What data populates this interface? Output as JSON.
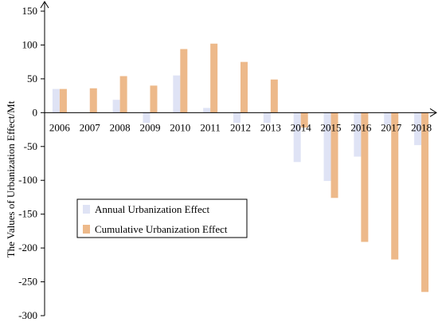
{
  "chart_data": {
    "type": "bar",
    "title": "",
    "xlabel": "",
    "ylabel": "The Values of  Urbanization Effect/Mt",
    "ylim": [
      -300,
      150
    ],
    "yticks": [
      150,
      100,
      50,
      0,
      -50,
      -100,
      -150,
      -200,
      -250,
      -300
    ],
    "grid": false,
    "legend_position": "lower-left",
    "categories": [
      "2006",
      "2007",
      "2008",
      "2009",
      "2010",
      "2011",
      "2012",
      "2013",
      "2014",
      "2015",
      "2016",
      "2017",
      "2018"
    ],
    "series": [
      {
        "name": "Annual Urbanization Effect",
        "color": "#dfe3f5",
        "values": [
          35,
          0,
          19,
          -15,
          55,
          7,
          -15,
          -15,
          -73,
          -101,
          -65,
          -18,
          -48
        ]
      },
      {
        "name": "Cumulative Urbanization Effect",
        "color": "#edb98a",
        "values": [
          35,
          36,
          54,
          40,
          94,
          102,
          75,
          49,
          -22,
          -126,
          -191,
          -217,
          -265
        ]
      }
    ]
  }
}
